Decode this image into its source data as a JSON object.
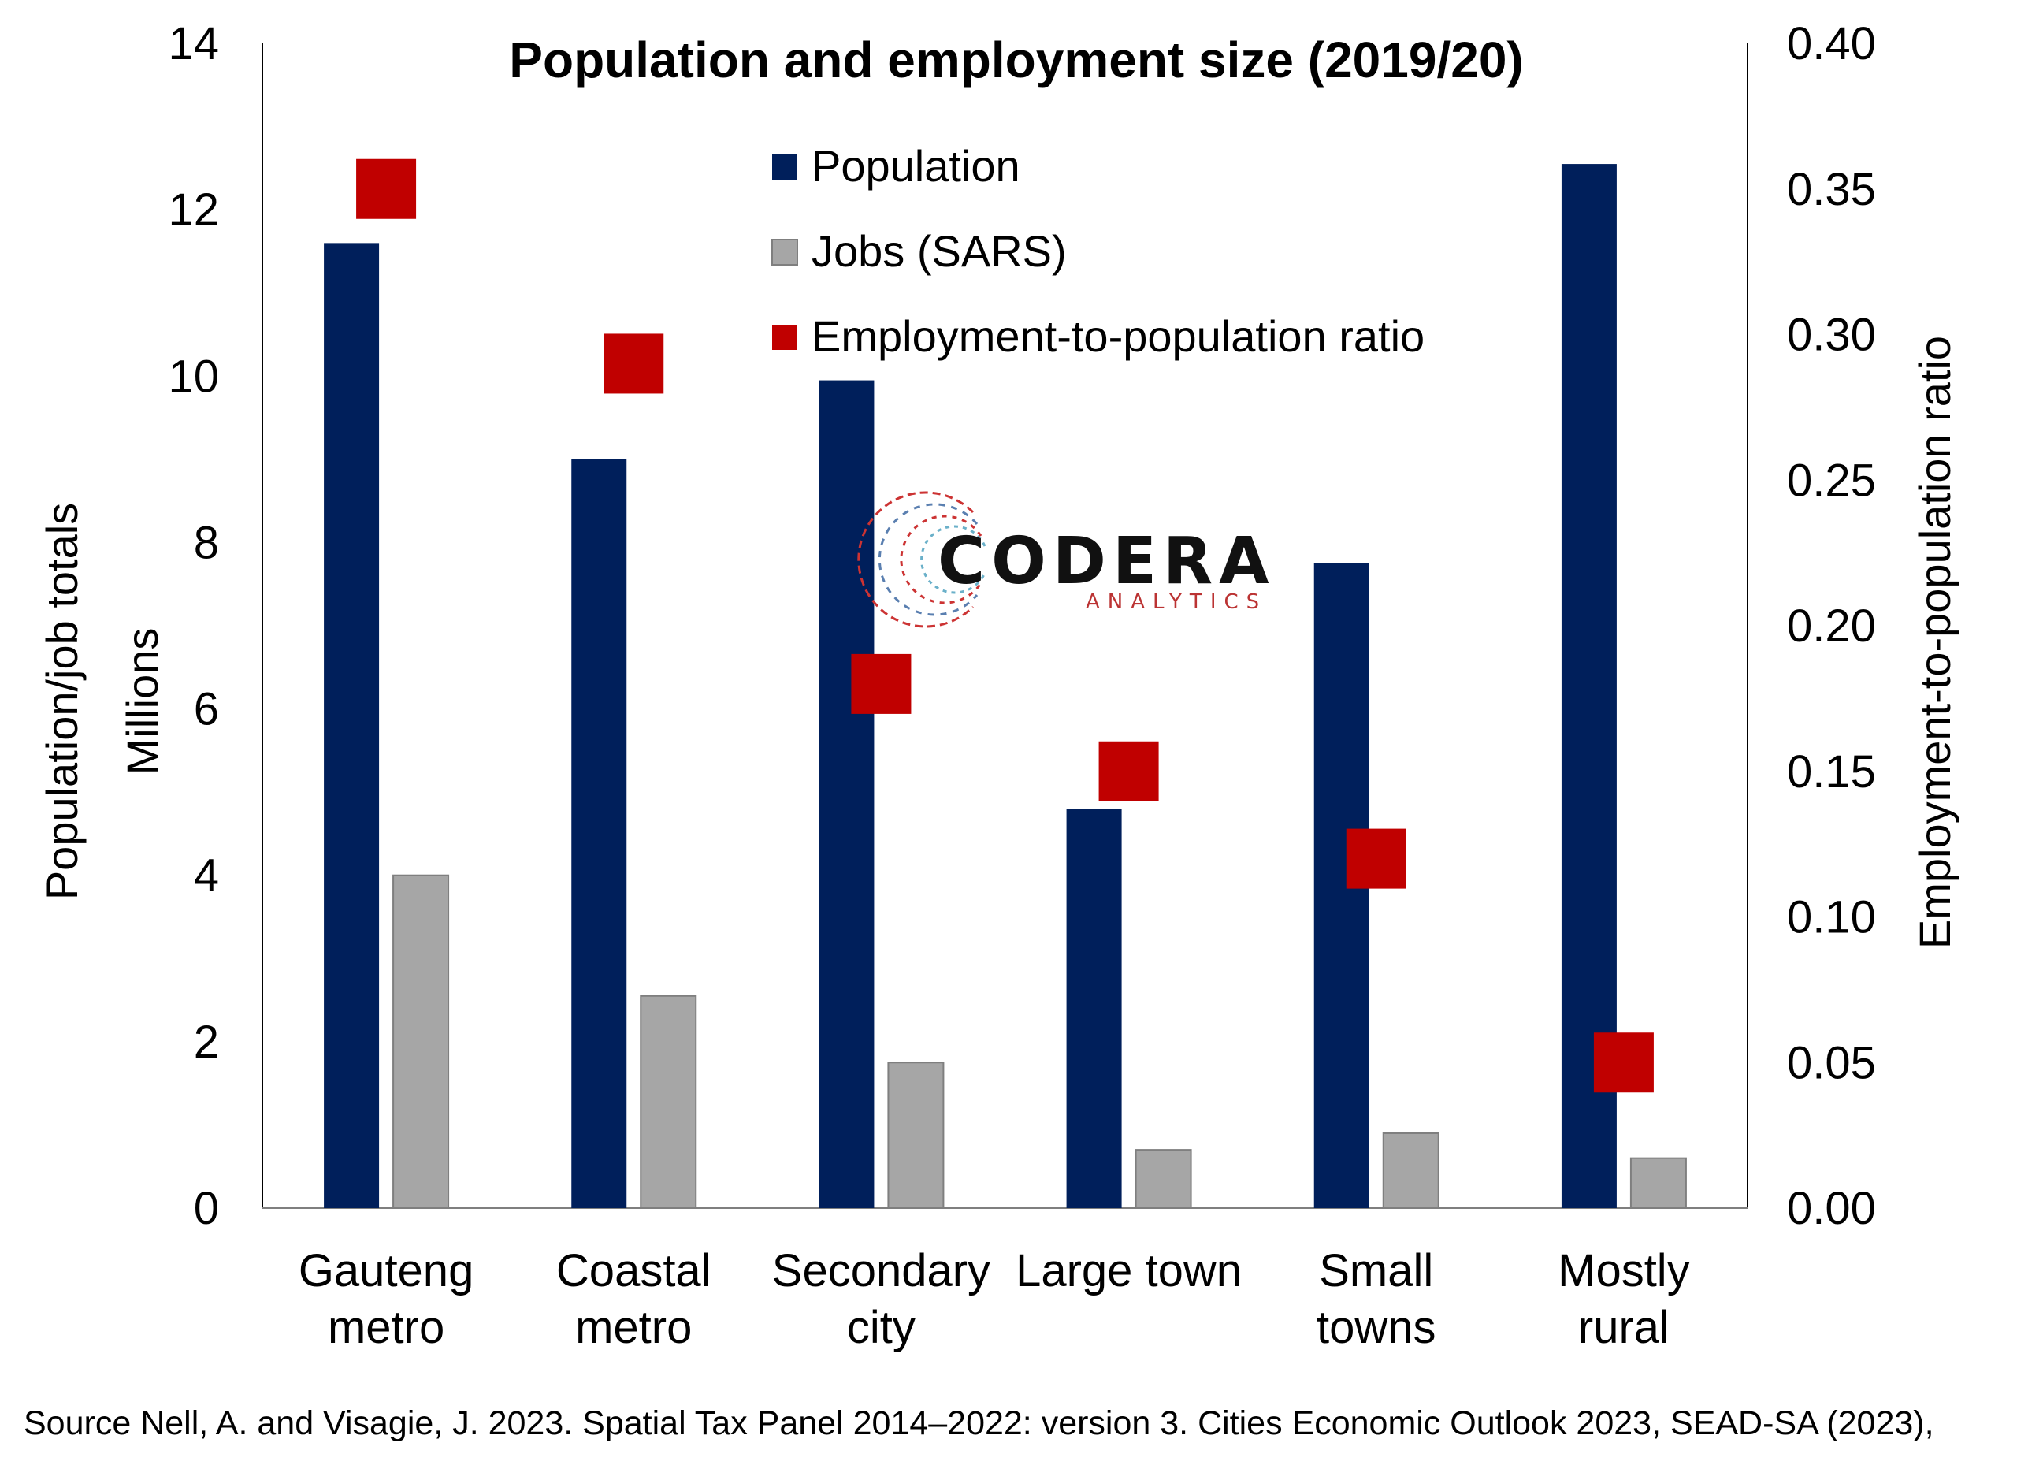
{
  "chart_data": {
    "type": "bar",
    "title": "Population and employment size (2019/20)",
    "categories": [
      [
        "Gauteng",
        "metro"
      ],
      [
        "Coastal",
        "metro"
      ],
      [
        "Secondary",
        "city"
      ],
      [
        "Large town"
      ],
      [
        "Small",
        "towns"
      ],
      [
        "Mostly",
        "rural"
      ]
    ],
    "series": [
      {
        "name": "Population",
        "axis": "left",
        "kind": "bar",
        "color": "#001f5b",
        "values": [
          11.6,
          9.0,
          9.95,
          4.8,
          7.75,
          12.55
        ]
      },
      {
        "name": "Jobs (SARS)",
        "axis": "left",
        "kind": "bar",
        "color": "#a6a6a6",
        "values": [
          4.0,
          2.55,
          1.75,
          0.7,
          0.9,
          0.6
        ]
      },
      {
        "name": "Employment-to-population ratio",
        "axis": "right",
        "kind": "marker",
        "color": "#c00000",
        "values": [
          0.35,
          0.29,
          0.18,
          0.15,
          0.12,
          0.05
        ]
      }
    ],
    "ylabel_left": [
      "Population/job totals",
      "Millions"
    ],
    "ylabel_right": "Employment-to-population ratio",
    "ylim_left": [
      0,
      14
    ],
    "ylim_right": [
      0,
      0.4
    ],
    "yticks_left": [
      "0",
      "2",
      "4",
      "6",
      "8",
      "10",
      "12",
      "14"
    ],
    "yticks_right": [
      "0.00",
      "0.05",
      "0.10",
      "0.15",
      "0.20",
      "0.25",
      "0.30",
      "0.35",
      "0.40"
    ],
    "grid": false,
    "legend_position": "top-center"
  },
  "logo": {
    "name": "CODERA",
    "sub": "ANALYTICS"
  },
  "source": "Source Nell, A. and Visagie, J. 2023. Spatial Tax Panel 2014–2022: version 3. Cities Economic Outlook 2023, SEAD-SA (2023),"
}
